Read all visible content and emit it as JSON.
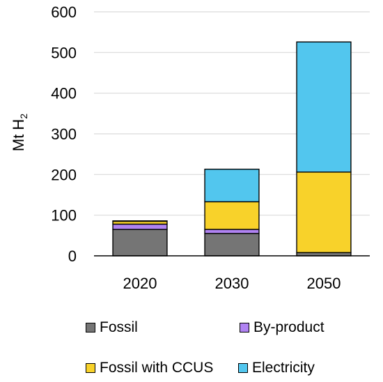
{
  "chart_data": {
    "type": "bar",
    "stacked": true,
    "categories": [
      "2020",
      "2030",
      "2050"
    ],
    "series": [
      {
        "name": "Fossil",
        "color": "#757575",
        "values": [
          65,
          55,
          8
        ]
      },
      {
        "name": "By-product",
        "color": "#b083f2",
        "values": [
          13,
          10,
          0
        ]
      },
      {
        "name": "Fossil with CCUS",
        "color": "#f8d22a",
        "values": [
          7,
          68,
          198
        ]
      },
      {
        "name": "Electricity",
        "color": "#52c6ee",
        "values": [
          1,
          80,
          320
        ]
      }
    ],
    "ylabel_main": "Mt H",
    "ylabel_sub": "2",
    "ylim": [
      0,
      600
    ],
    "yticks": [
      0,
      100,
      200,
      300,
      400,
      500,
      600
    ],
    "grid": true,
    "legend_position": "bottom"
  }
}
